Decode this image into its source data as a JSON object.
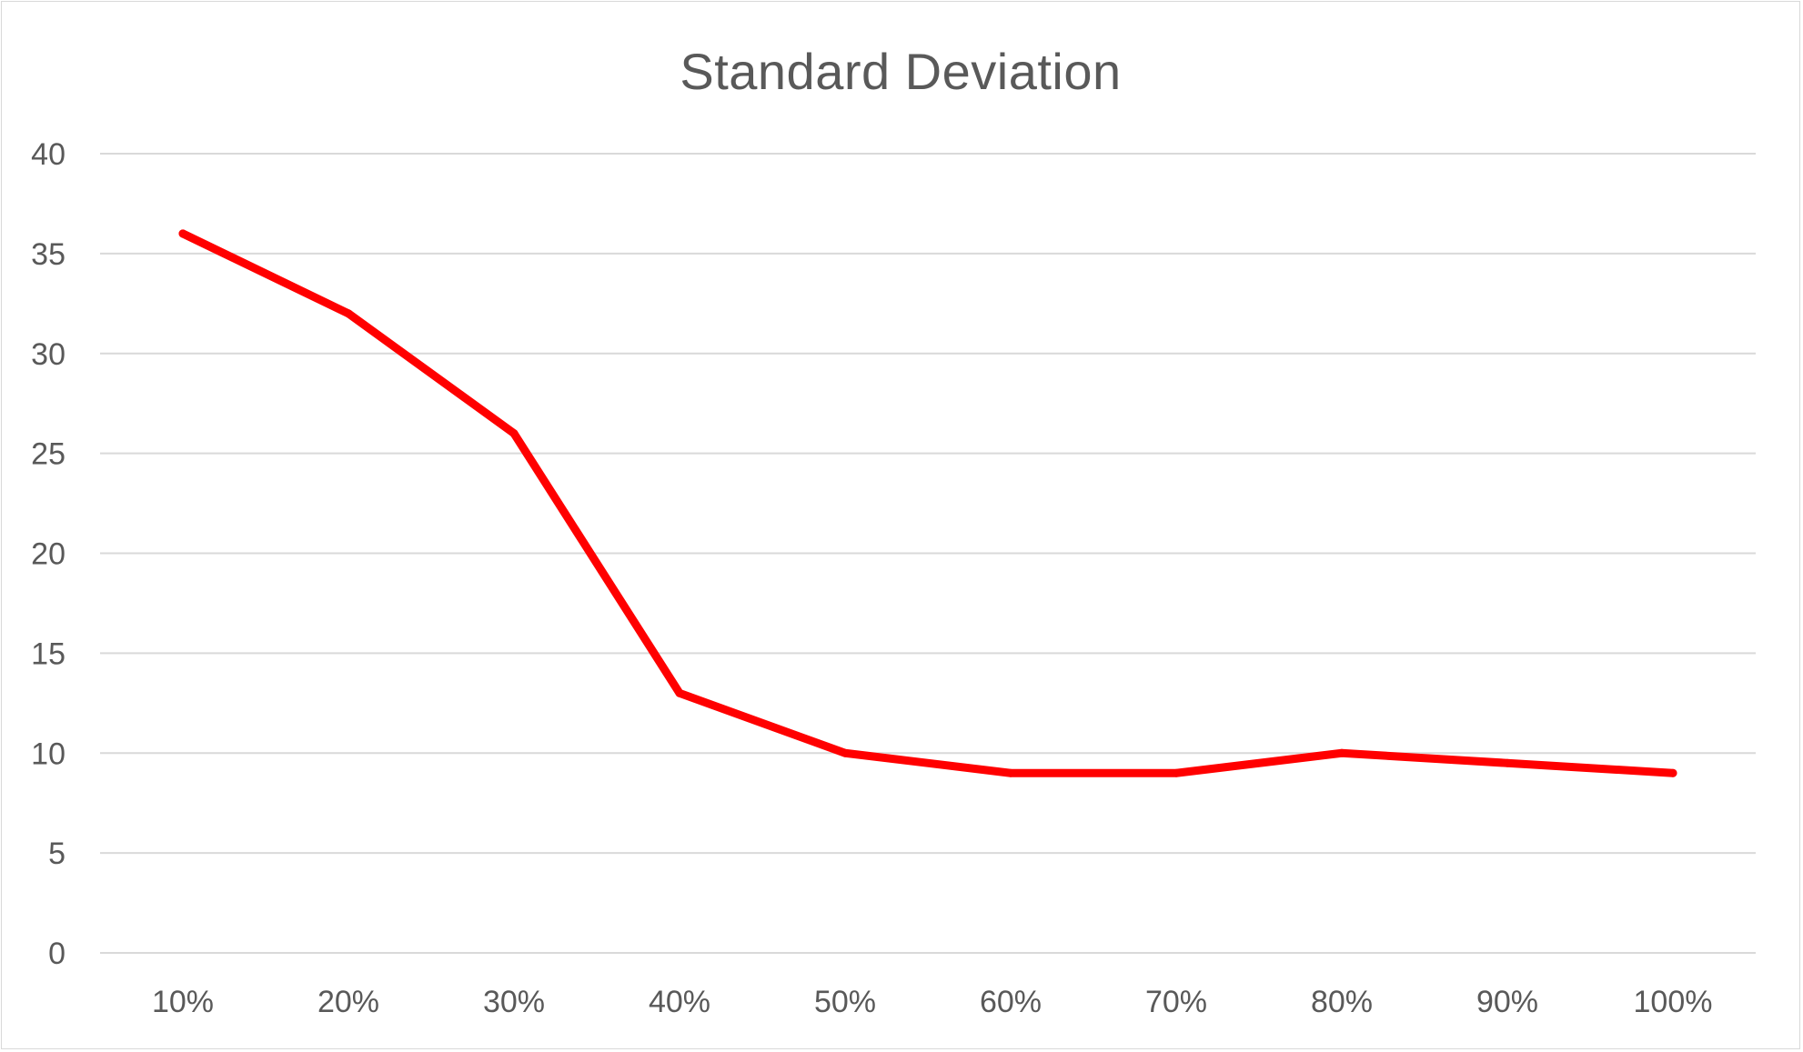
{
  "chart_data": {
    "type": "line",
    "title": "Standard Deviation",
    "xlabel": "",
    "ylabel": "",
    "categories": [
      "10%",
      "20%",
      "30%",
      "40%",
      "50%",
      "60%",
      "70%",
      "80%",
      "90%",
      "100%"
    ],
    "series": [
      {
        "values": [
          36,
          32,
          26,
          13,
          10,
          9,
          9,
          10,
          9.5,
          9
        ],
        "color": "#ff0000"
      }
    ],
    "ylim": [
      0,
      40
    ],
    "yticks": [
      "0",
      "5",
      "10",
      "15",
      "20",
      "25",
      "30",
      "35",
      "40"
    ],
    "grid": true,
    "legend": "none",
    "gridline_color": "#d9d9d9",
    "text_color": "#595959"
  }
}
